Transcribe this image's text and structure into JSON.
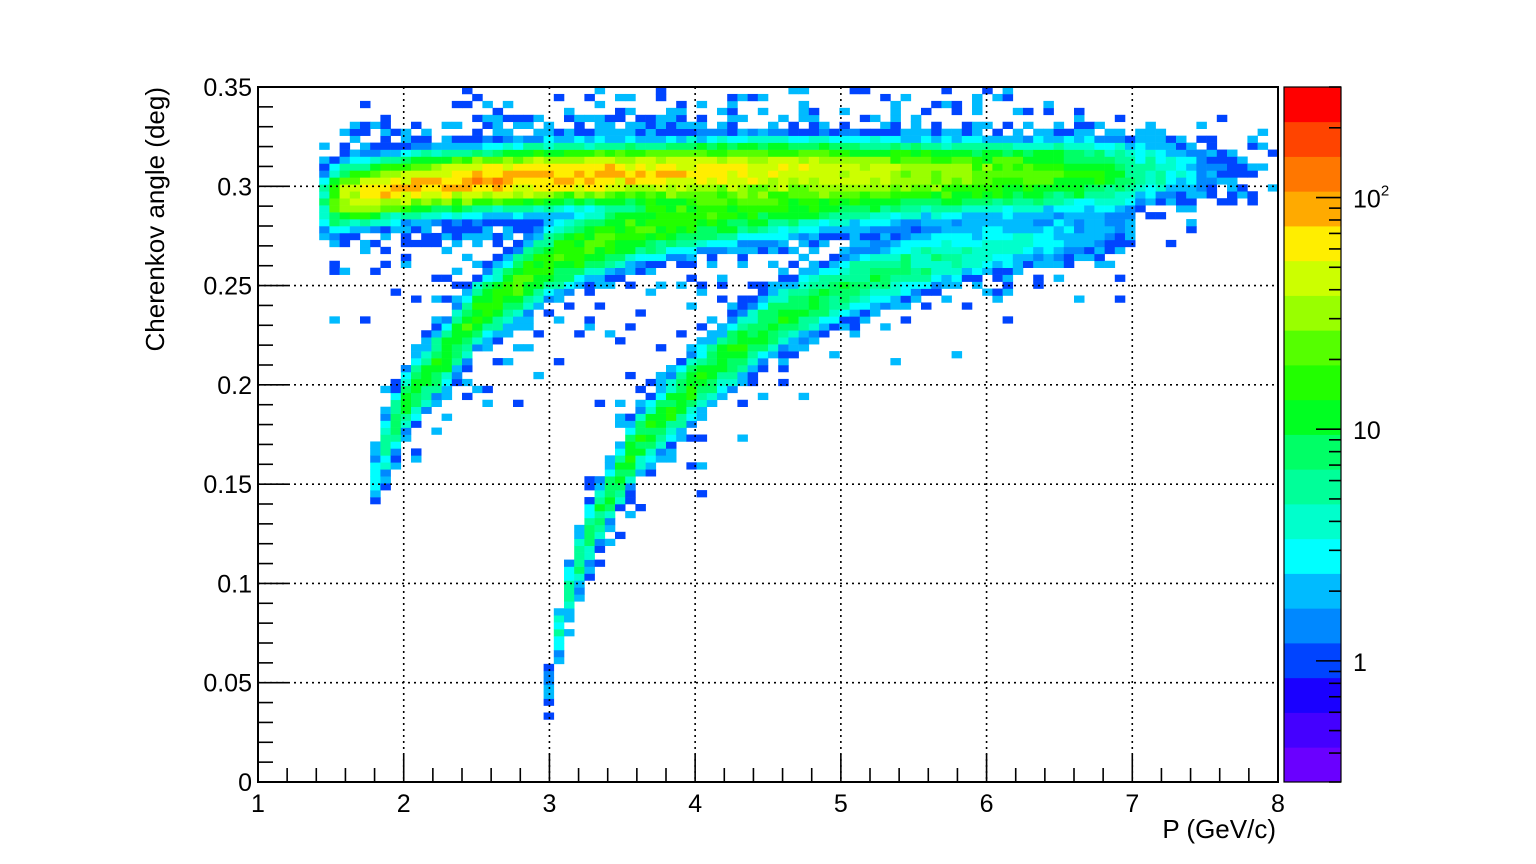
{
  "chart_data": {
    "type": "heatmap",
    "title": "",
    "xlabel": "P (GeV/c)",
    "ylabel": "Cherenkov angle (deg)",
    "xlim": [
      1,
      8
    ],
    "ylim": [
      0,
      0.35
    ],
    "x_ticks": [
      "1",
      "2",
      "3",
      "4",
      "5",
      "6",
      "7",
      "8"
    ],
    "y_ticks": [
      "0",
      "0.05",
      "0.1",
      "0.15",
      "0.2",
      "0.25",
      "0.3",
      "0.35"
    ],
    "grid": true,
    "bins": {
      "nx": 100,
      "ny": 100
    },
    "z_scale": "log",
    "zlim": [
      0.3,
      300
    ],
    "colorbar": {
      "ticks": [
        {
          "value": 1,
          "label": "1"
        },
        {
          "value": 10,
          "label": "10"
        },
        {
          "value": 100,
          "label": "10",
          "sup": "2"
        }
      ],
      "colors": [
        "#6a00ff",
        "#4400ff",
        "#1a00ff",
        "#0044ff",
        "#0088ff",
        "#00bbff",
        "#00ffff",
        "#00ffcc",
        "#00ff99",
        "#00ff66",
        "#00ff22",
        "#22ff00",
        "#55ff00",
        "#99ff00",
        "#ccff00",
        "#ffee00",
        "#ffaa00",
        "#ff7700",
        "#ff4400",
        "#ff0000"
      ]
    },
    "bands": [
      {
        "ridge_points": [
          [
            1.45,
            0.292,
            20,
            0.008
          ],
          [
            1.6,
            0.295,
            150,
            0.007
          ],
          [
            2.0,
            0.3,
            300,
            0.006
          ],
          [
            2.5,
            0.303,
            350,
            0.006
          ],
          [
            3.0,
            0.305,
            350,
            0.006
          ],
          [
            3.5,
            0.306,
            300,
            0.006
          ],
          [
            4.5,
            0.307,
            200,
            0.007
          ],
          [
            5.5,
            0.307,
            120,
            0.007
          ],
          [
            6.5,
            0.307,
            60,
            0.008
          ],
          [
            7.0,
            0.307,
            25,
            0.009
          ],
          [
            7.5,
            0.308,
            6,
            0.01
          ],
          [
            8.0,
            0.308,
            2,
            0.01
          ]
        ]
      },
      {
        "ridge_points": [
          [
            1.75,
            0.14,
            2,
            0.008
          ],
          [
            1.85,
            0.165,
            20,
            0.008
          ],
          [
            2.0,
            0.19,
            40,
            0.008
          ],
          [
            2.5,
            0.235,
            60,
            0.008
          ],
          [
            3.0,
            0.262,
            70,
            0.008
          ],
          [
            3.5,
            0.276,
            70,
            0.008
          ],
          [
            4.0,
            0.285,
            60,
            0.008
          ],
          [
            5.0,
            0.295,
            40,
            0.008
          ],
          [
            6.0,
            0.3,
            20,
            0.008
          ],
          [
            7.0,
            0.303,
            5,
            0.008
          ]
        ]
      },
      {
        "ridge_points": [
          [
            2.93,
            0.025,
            1,
            0.006
          ],
          [
            3.0,
            0.05,
            8,
            0.007
          ],
          [
            3.1,
            0.09,
            20,
            0.008
          ],
          [
            3.3,
            0.13,
            35,
            0.008
          ],
          [
            3.6,
            0.17,
            45,
            0.008
          ],
          [
            4.0,
            0.2,
            50,
            0.008
          ],
          [
            4.5,
            0.23,
            45,
            0.008
          ],
          [
            5.0,
            0.248,
            35,
            0.008
          ],
          [
            5.5,
            0.26,
            25,
            0.008
          ],
          [
            6.0,
            0.268,
            15,
            0.008
          ],
          [
            7.0,
            0.28,
            3,
            0.008
          ]
        ]
      }
    ]
  }
}
